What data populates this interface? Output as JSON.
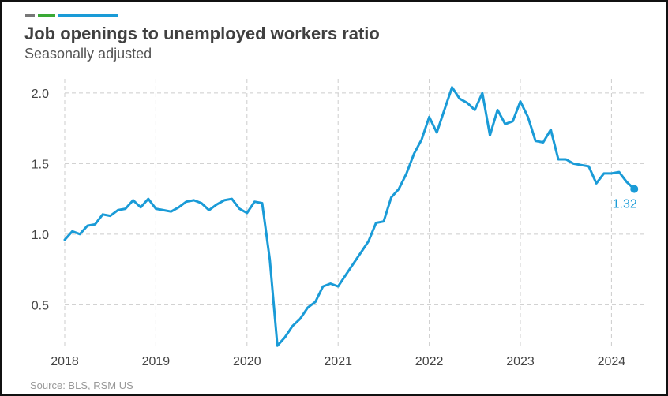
{
  "header": {
    "title": "Job openings to unemployed workers ratio",
    "subtitle": "Seasonally adjusted"
  },
  "footer": {
    "source": "Source: BLS, RSM US"
  },
  "colors": {
    "line": "#1a9bd7",
    "grid": "#cccccc",
    "accent_gray": "#777777",
    "accent_green": "#3aa935",
    "accent_blue": "#1a9bd7",
    "title": "#404040"
  },
  "chart_data": {
    "type": "line",
    "title": "Job openings to unemployed workers ratio",
    "subtitle": "Seasonally adjusted",
    "xlabel": "",
    "ylabel": "",
    "x_start": "2018-01",
    "x_frequency": "monthly",
    "xlim": [
      "2018-01",
      "2024-04"
    ],
    "ylim": [
      0.2,
      2.1
    ],
    "yticks": [
      0.5,
      1.0,
      1.5,
      2.0
    ],
    "ytick_labels": [
      "0.5",
      "1.0",
      "1.5",
      "2.0"
    ],
    "xticks": [
      "2018-01",
      "2019-01",
      "2020-01",
      "2021-01",
      "2022-01",
      "2023-01",
      "2024-01"
    ],
    "xtick_labels": [
      "2018",
      "2019",
      "2020",
      "2021",
      "2022",
      "2023",
      "2024"
    ],
    "grid": true,
    "legend": "none",
    "series": [
      {
        "values": [
          0.96,
          1.02,
          1.0,
          1.06,
          1.07,
          1.14,
          1.13,
          1.17,
          1.18,
          1.24,
          1.19,
          1.25,
          1.18,
          1.17,
          1.16,
          1.19,
          1.23,
          1.24,
          1.22,
          1.17,
          1.21,
          1.24,
          1.25,
          1.18,
          1.15,
          1.23,
          1.22,
          0.82,
          0.21,
          0.27,
          0.35,
          0.4,
          0.48,
          0.52,
          0.63,
          0.65,
          0.63,
          0.71,
          0.79,
          0.87,
          0.95,
          1.08,
          1.09,
          1.26,
          1.32,
          1.43,
          1.57,
          1.67,
          1.83,
          1.72,
          1.88,
          2.04,
          1.96,
          1.93,
          1.88,
          2.0,
          1.7,
          1.88,
          1.78,
          1.8,
          1.94,
          1.83,
          1.66,
          1.65,
          1.74,
          1.53,
          1.53,
          1.5,
          1.49,
          1.48,
          1.36,
          1.43,
          1.43,
          1.44,
          1.37,
          1.32
        ]
      }
    ],
    "annotations": [
      {
        "x": "2024-04",
        "y": 1.32,
        "text": "1.32"
      }
    ]
  }
}
